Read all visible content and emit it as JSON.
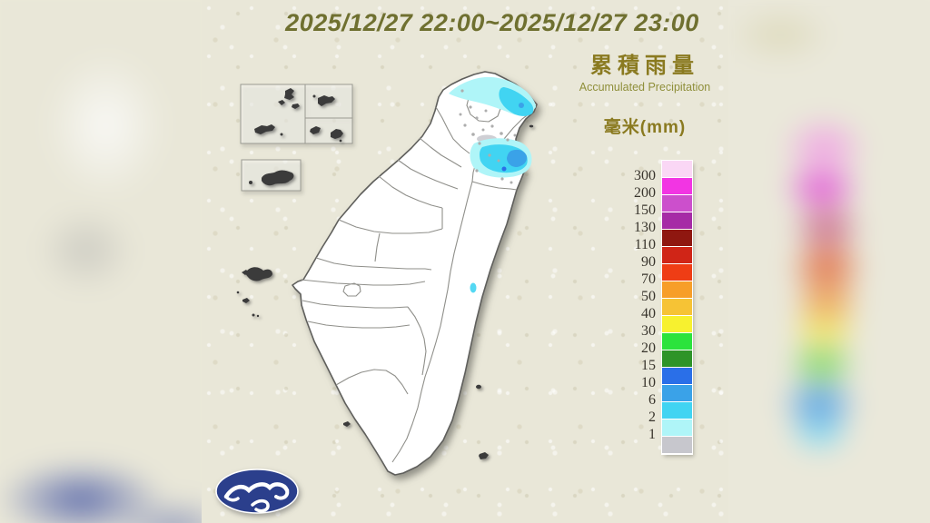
{
  "title": "2025/12/27 22:00~2025/12/27 23:00",
  "legend": {
    "title_zh": "累積雨量",
    "title_en": "Accumulated Precipitation",
    "unit_label": "毫米(mm)",
    "levels": [
      "300",
      "200",
      "150",
      "130",
      "110",
      "90",
      "70",
      "50",
      "40",
      "30",
      "20",
      "15",
      "10",
      "6",
      "2",
      "1"
    ],
    "colors": [
      "#FAD7F5",
      "#F235E3",
      "#CC4FCC",
      "#A62BA6",
      "#8F1710",
      "#D02517",
      "#EF3D15",
      "#F79E28",
      "#F6C335",
      "#F7F12F",
      "#2BE33C",
      "#2E9428",
      "#2A6FE8",
      "#3AA2E8",
      "#41D4F2",
      "#AFF5F8",
      "#C7C7CD"
    ],
    "dot_gray": "#ADADAD"
  },
  "map": {
    "land_fill": "#FFFFFF",
    "coast_stroke": "#5F5F5C",
    "county_stroke": "#8F8F8A",
    "island_fill": "#3B3B3B",
    "precipitation_regions": [
      {
        "area": "north coast (Keelung / New Taipei)",
        "level_mm": "1-6"
      },
      {
        "area": "northeast (Yilan)",
        "level_mm": "1-15"
      },
      {
        "area": "east coast small spot (Hualien)",
        "level_mm": "1-2"
      }
    ]
  },
  "logo": {
    "label": "weather-bureau-logo",
    "blue": "#2B3F8C"
  },
  "frame": {
    "background": "#E9E7D8",
    "title_color": "#6F7030"
  }
}
